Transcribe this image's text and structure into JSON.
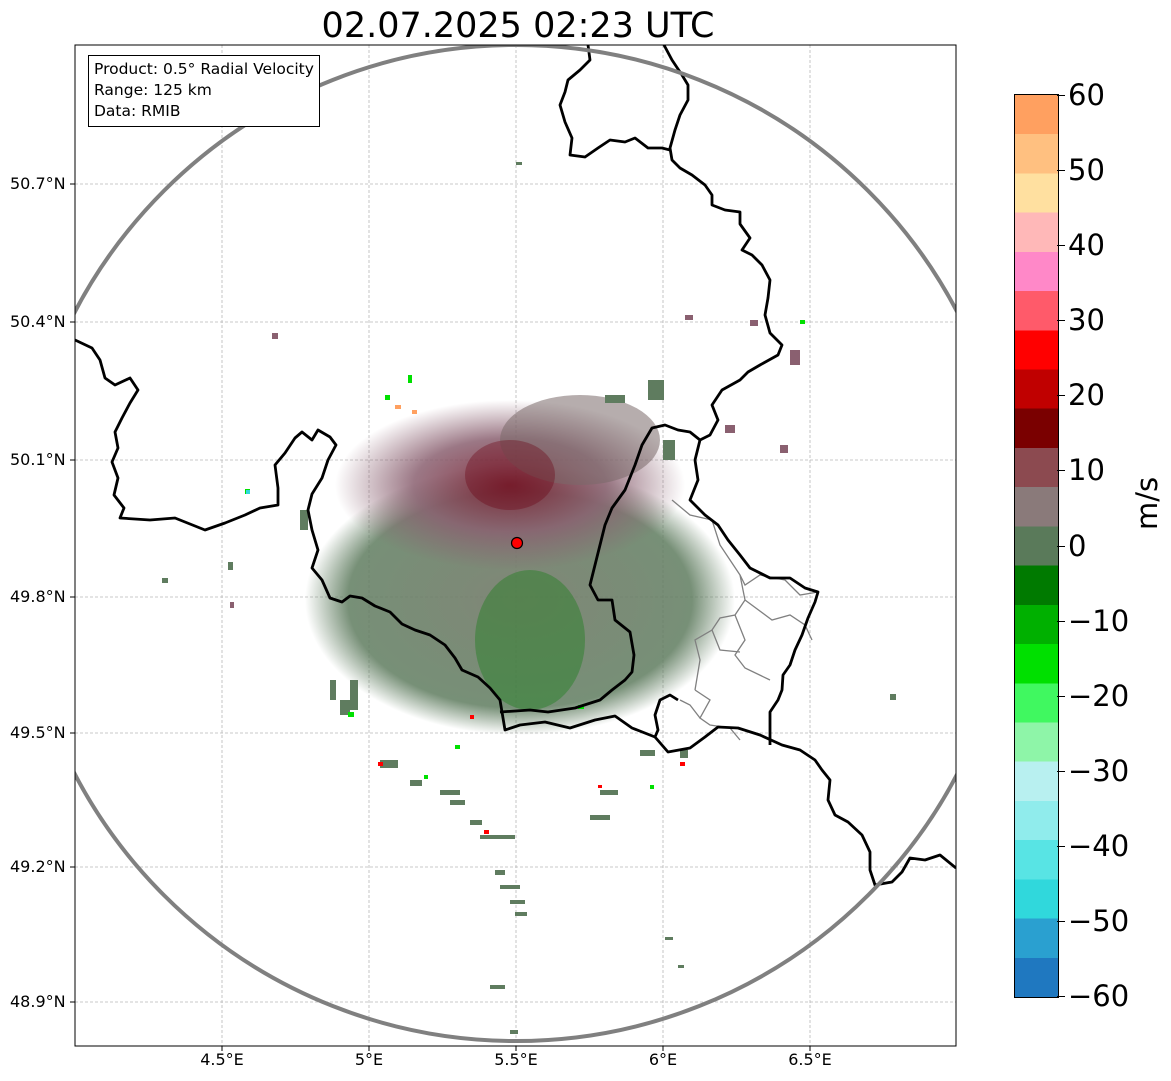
{
  "title": "02.07.2025 02:23 UTC",
  "info": {
    "product": "Product: 0.5° Radial Velocity",
    "range": "Range: 125 km",
    "source": "Data: RMIB"
  },
  "map": {
    "lon_range": [
      4.0,
      7.0
    ],
    "lat_range": [
      48.8,
      51.0
    ],
    "radar_site": {
      "lon": 5.51,
      "lat": 49.91,
      "color": "#ff0000"
    },
    "range_ring_color": "#808080",
    "gridlines": true
  },
  "axes": {
    "y_ticks": [
      "50.7°N",
      "50.4°N",
      "50.1°N",
      "49.8°N",
      "49.5°N",
      "49.2°N",
      "48.9°N"
    ],
    "x_ticks": [
      "4.5°E",
      "5°E",
      "5.5°E",
      "6°E",
      "6.5°E"
    ]
  },
  "colorbar": {
    "label": "m/s",
    "min": -60,
    "max": 60,
    "ticks": [
      "60",
      "50",
      "40",
      "30",
      "20",
      "10",
      "0",
      "−10",
      "−20",
      "−30",
      "−40",
      "−50",
      "−60"
    ],
    "colors": [
      "#1f78c0",
      "#2aa0d0",
      "#30d8dc",
      "#58e4e4",
      "#90ecec",
      "#b8f0f0",
      "#8ef5a8",
      "#40f860",
      "#00e000",
      "#00b000",
      "#007a00",
      "#5a7a5a",
      "#8a7a7a",
      "#8c4a50",
      "#7a0000",
      "#c00000",
      "#ff0000",
      "#ff5a6a",
      "#ff88c8",
      "#ffb8b8",
      "#ffe0a0",
      "#ffc080",
      "#ffa060"
    ]
  }
}
